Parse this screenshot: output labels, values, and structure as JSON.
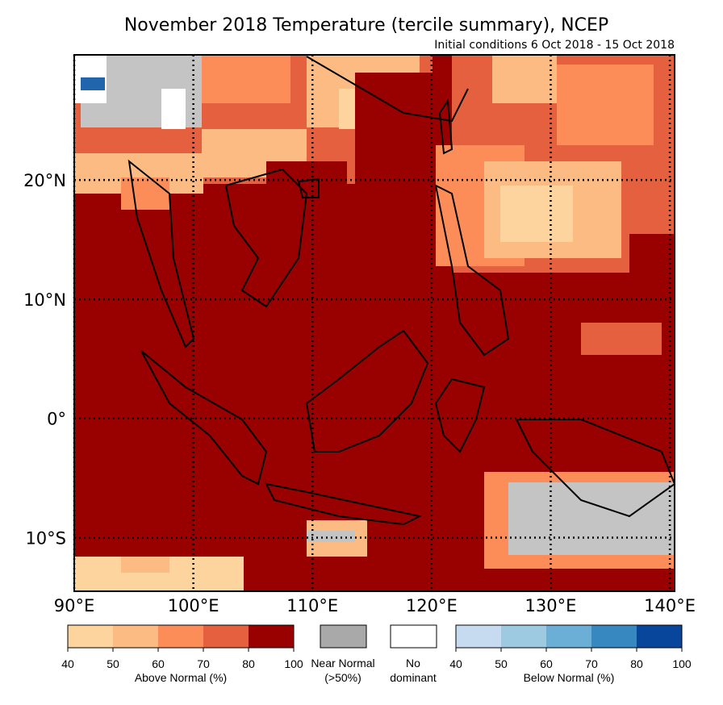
{
  "map": {
    "title": "November 2018 Temperature (tercile summary), NCEP",
    "subtitle": "Initial conditions 6 Oct 2018 - 15 Oct 2018",
    "xlim": [
      90,
      140.4
    ],
    "ylim": [
      -14.5,
      30.5
    ],
    "xticks": [
      {
        "value": 90,
        "label": "90°E"
      },
      {
        "value": 100,
        "label": "100°E"
      },
      {
        "value": 110,
        "label": "110°E"
      },
      {
        "value": 120,
        "label": "120°E"
      },
      {
        "value": 130,
        "label": "130°E"
      },
      {
        "value": 140,
        "label": "140°E"
      }
    ],
    "yticks": [
      {
        "value": 20,
        "label": "20°N"
      },
      {
        "value": 10,
        "label": "10°N"
      },
      {
        "value": 0,
        "label": "0°"
      },
      {
        "value": -10,
        "label": "10°S"
      }
    ]
  },
  "legend": {
    "above": {
      "label": "Above Normal (%)",
      "ticks": [
        40,
        50,
        60,
        70,
        80,
        100
      ],
      "colors": [
        "#fdd49e",
        "#fdbb84",
        "#fc8d59",
        "#e5603f",
        "#990000"
      ]
    },
    "near": {
      "label_lines": [
        "Near Normal",
        "(>50%)"
      ],
      "color": "#a9a9a9"
    },
    "none": {
      "label_lines": [
        "No",
        "dominant"
      ],
      "color": "#ffffff"
    },
    "below": {
      "label": "Below Normal (%)",
      "ticks": [
        40,
        50,
        60,
        70,
        80,
        100
      ],
      "colors": [
        "#c6dbef",
        "#9ecae1",
        "#6baed6",
        "#3787c0",
        "#08469c"
      ]
    }
  }
}
